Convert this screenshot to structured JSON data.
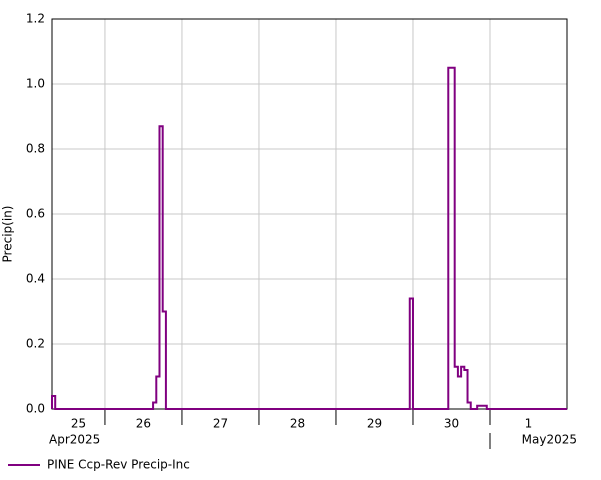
{
  "chart_data": {
    "type": "step",
    "y_label": "Precip(in)",
    "xlim": [
      7.5,
      168
    ],
    "ylim": [
      0,
      1.2
    ],
    "yticks": [
      {
        "value": 0,
        "label": "0.0"
      },
      {
        "value": 0.2,
        "label": "0.2"
      },
      {
        "value": 0.4,
        "label": "0.4"
      },
      {
        "value": 0.6,
        "label": "0.6"
      },
      {
        "value": 0.8,
        "label": "0.8"
      },
      {
        "value": 1.0,
        "label": "1.0"
      },
      {
        "value": 1.2,
        "label": "1.2"
      }
    ],
    "xticks": [
      {
        "value": 0,
        "label": "25"
      },
      {
        "value": 24,
        "label": "26"
      },
      {
        "value": 48,
        "label": "27"
      },
      {
        "value": 72,
        "label": "28"
      },
      {
        "value": 96,
        "label": "29"
      },
      {
        "value": 120,
        "label": "30"
      },
      {
        "value": 144,
        "label": "1"
      }
    ],
    "months": [
      {
        "value": 0,
        "label": "Apr2025"
      },
      {
        "value": 144,
        "label": "May2025"
      }
    ],
    "grid": true,
    "series": [
      {
        "name": "PINE Ccp-Rev Precip-Inc",
        "color": "#800080",
        "x": [
          7.5,
          8.5,
          39,
          40,
          41,
          42,
          43,
          119,
          120,
          131,
          133,
          134,
          135,
          136,
          137,
          138,
          140,
          143,
          168
        ],
        "values": [
          0.04,
          0,
          0.02,
          0.1,
          0.87,
          0.3,
          0,
          0.34,
          0,
          1.05,
          0.13,
          0.1,
          0.13,
          0.12,
          0.02,
          0,
          0.01,
          0,
          0
        ]
      }
    ]
  }
}
